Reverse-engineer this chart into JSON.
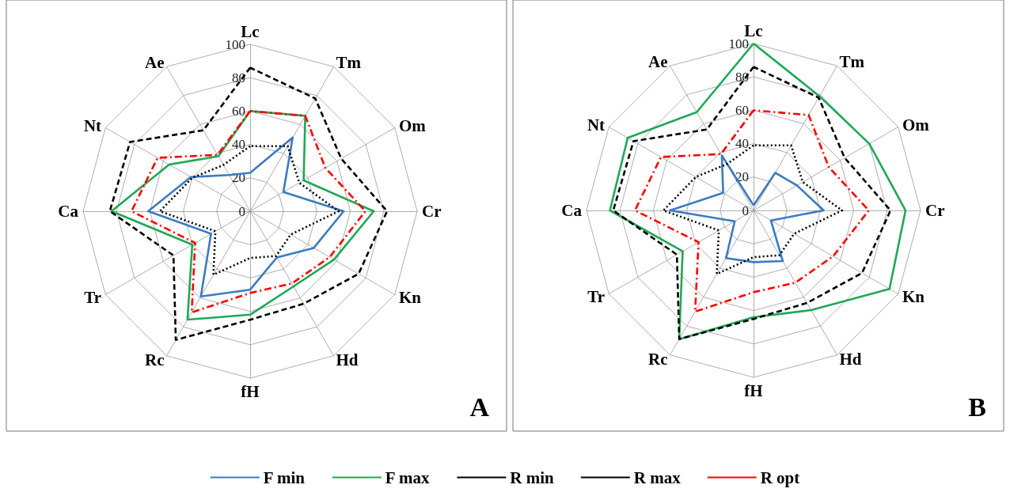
{
  "chart_data": [
    {
      "type": "radar",
      "categories": [
        "Lc",
        "Tm",
        "Om",
        "Cr",
        "Kn",
        "Hd",
        "fH",
        "Rc",
        "Tr",
        "Ca",
        "Nt",
        "Ae"
      ],
      "ylim": [
        0,
        100
      ],
      "yticks": [
        0,
        20,
        40,
        60,
        80,
        100
      ],
      "marker": "none",
      "legend": "bottom",
      "annotations": [
        "A"
      ],
      "series": [
        {
          "name": "F min",
          "color": "#3b7bc2",
          "line_style": "solid",
          "values": [
            23,
            51,
            23,
            56,
            44,
            32,
            47,
            59,
            27,
            61,
            41,
            25
          ]
        },
        {
          "name": "F max",
          "color": "#1fa855",
          "line_style": "solid",
          "values": [
            60,
            66,
            37,
            74,
            58,
            52,
            62,
            75,
            40,
            83,
            56,
            38
          ]
        },
        {
          "name": "R min",
          "color": "#000000",
          "line_style": "dotted",
          "values": [
            39,
            45,
            34,
            53,
            28,
            31,
            28,
            44,
            24,
            54,
            40,
            32
          ]
        },
        {
          "name": "R max",
          "color": "#000000",
          "line_style": "dashed",
          "values": [
            86,
            78,
            63,
            82,
            75,
            64,
            65,
            89,
            53,
            84,
            83,
            56
          ]
        },
        {
          "name": "R opt",
          "color": "#ff0000",
          "line_style": "dashdot",
          "values": [
            60,
            66,
            52,
            69,
            55,
            50,
            49,
            70,
            38,
            71,
            64,
            39
          ]
        }
      ]
    },
    {
      "type": "radar",
      "categories": [
        "Lc",
        "Tm",
        "Om",
        "Cr",
        "Kn",
        "Hd",
        "fH",
        "Rc",
        "Tr",
        "Ca",
        "Nt",
        "Ae"
      ],
      "ylim": [
        0,
        100
      ],
      "yticks": [
        0,
        20,
        40,
        60,
        80,
        100
      ],
      "marker": "none",
      "annotations": [
        "B"
      ],
      "series": [
        {
          "color": "#3b7bc2",
          "line_style": "solid",
          "values": [
            3,
            26,
            30,
            42,
            12,
            35,
            31,
            33,
            13,
            50,
            21,
            38
          ]
        },
        {
          "color": "#1fa855",
          "line_style": "solid",
          "values": [
            100,
            79,
            80,
            91,
            94,
            69,
            64,
            89,
            49,
            86,
            87,
            68
          ]
        },
        {
          "color": "#000000",
          "line_style": "dotted",
          "values": [
            39,
            45,
            34,
            53,
            28,
            31,
            28,
            44,
            24,
            54,
            40,
            32
          ]
        },
        {
          "color": "#000000",
          "line_style": "dashed",
          "values": [
            86,
            78,
            63,
            82,
            75,
            64,
            65,
            89,
            53,
            84,
            83,
            56
          ]
        },
        {
          "color": "#ff0000",
          "line_style": "dashdot",
          "values": [
            60,
            66,
            52,
            69,
            55,
            50,
            49,
            70,
            38,
            71,
            64,
            39
          ]
        }
      ]
    }
  ]
}
